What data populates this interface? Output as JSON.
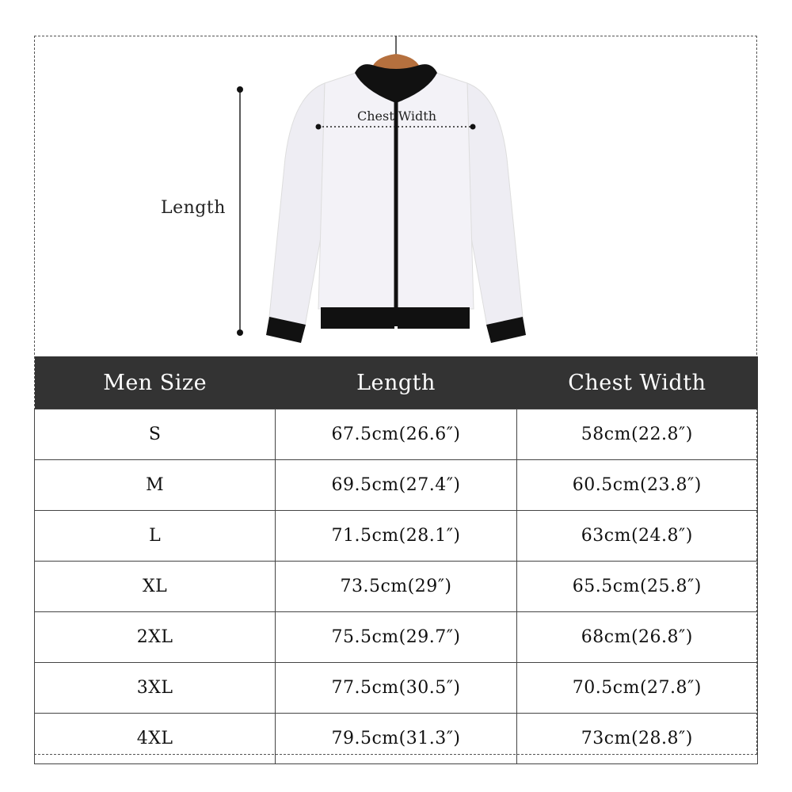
{
  "diagram": {
    "length_label": "Length",
    "chest_label": "Chest Width",
    "colors": {
      "jacket_body": "#f2f1f6",
      "trim": "#111111",
      "hanger": "#b5703e"
    }
  },
  "table": {
    "headers": [
      "Men Size",
      "Length",
      "Chest Width"
    ],
    "header_bg": "#333333",
    "rows": [
      [
        "S",
        "67.5cm(26.6″)",
        "58cm(22.8″)"
      ],
      [
        "M",
        "69.5cm(27.4″)",
        "60.5cm(23.8″)"
      ],
      [
        "L",
        "71.5cm(28.1″)",
        "63cm(24.8″)"
      ],
      [
        "XL",
        "73.5cm(29″)",
        "65.5cm(25.8″)"
      ],
      [
        "2XL",
        "75.5cm(29.7″)",
        "68cm(26.8″)"
      ],
      [
        "3XL",
        "77.5cm(30.5″)",
        "70.5cm(27.8″)"
      ],
      [
        "4XL",
        "79.5cm(31.3″)",
        "73cm(28.8″)"
      ]
    ]
  }
}
